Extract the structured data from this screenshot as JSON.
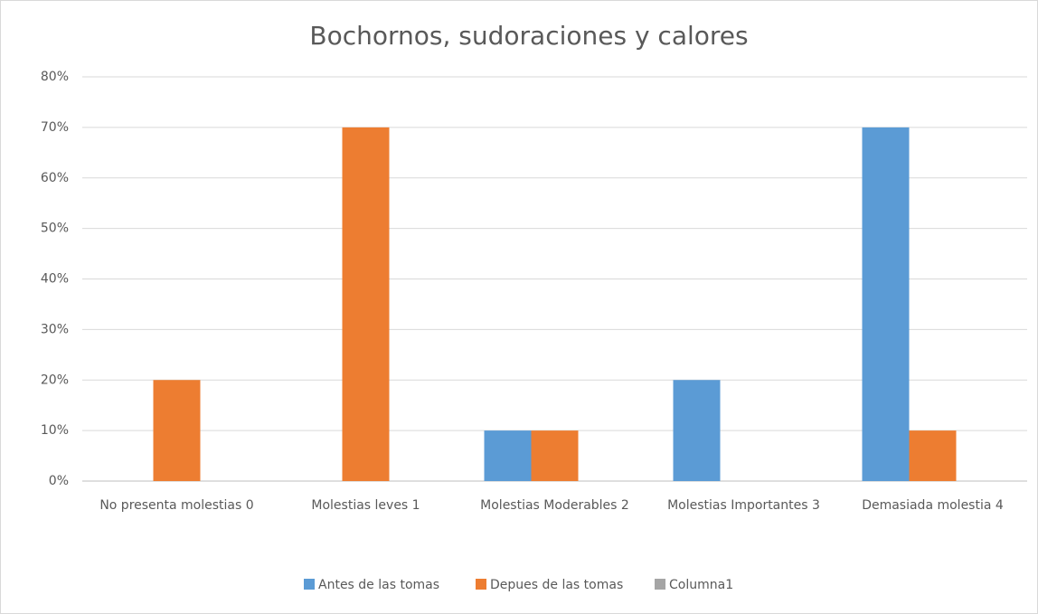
{
  "chart_data": {
    "type": "bar",
    "title": "Bochornos, sudoraciones y calores",
    "categories": [
      "No presenta molestias 0",
      "Molestias leves 1",
      "Molestias Moderables 2",
      "Molestias Importantes 3",
      "Demasiada molestia 4"
    ],
    "series": [
      {
        "name": "Antes de las tomas",
        "color": "#5b9bd5",
        "values": [
          0,
          0,
          10,
          20,
          70
        ]
      },
      {
        "name": "Depues de las tomas",
        "color": "#ed7d31",
        "values": [
          20,
          70,
          10,
          0,
          10
        ]
      },
      {
        "name": "Columna1",
        "color": "#a5a5a5",
        "values": [
          null,
          null,
          null,
          null,
          null
        ]
      }
    ],
    "ylim": [
      0,
      80
    ],
    "yticks": [
      {
        "value": 0,
        "label": "0%"
      },
      {
        "value": 10,
        "label": "10%"
      },
      {
        "value": 20,
        "label": "20%"
      },
      {
        "value": 30,
        "label": "30%"
      },
      {
        "value": 40,
        "label": "40%"
      },
      {
        "value": 50,
        "label": "50%"
      },
      {
        "value": 60,
        "label": "60%"
      },
      {
        "value": 70,
        "label": "70%"
      },
      {
        "value": 80,
        "label": "80%"
      }
    ],
    "grid": true,
    "legend": "bottom"
  }
}
